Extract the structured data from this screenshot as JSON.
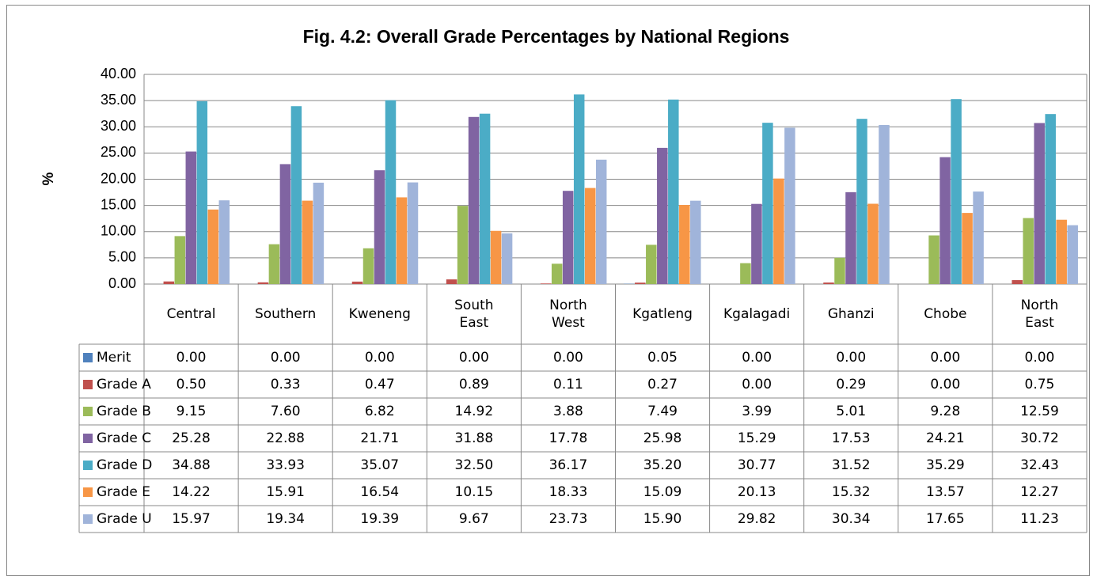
{
  "chart_data": {
    "type": "bar",
    "title": "Fig. 4.2: Overall Grade Percentages by National Regions",
    "y_label": "%",
    "categories": [
      "Central",
      "Southern",
      "Kweneng",
      "South East",
      "North West",
      "Kgatleng",
      "Kgalagadi",
      "Ghanzi",
      "Chobe",
      "North East"
    ],
    "ylim": [
      0,
      40
    ],
    "yticks": [
      {
        "value": 0,
        "label": "0.00"
      },
      {
        "value": 5,
        "label": "5.00"
      },
      {
        "value": 10,
        "label": "10.00"
      },
      {
        "value": 15,
        "label": "15.00"
      },
      {
        "value": 20,
        "label": "20.00"
      },
      {
        "value": 25,
        "label": "25.00"
      },
      {
        "value": 30,
        "label": "30.00"
      },
      {
        "value": 35,
        "label": "35.00"
      },
      {
        "value": 40,
        "label": "40.00"
      }
    ],
    "grid": true,
    "series": [
      {
        "name": "Merit",
        "color": "#4f81bd",
        "values": [
          0,
          0,
          0,
          0,
          0,
          0.05,
          0,
          0,
          0,
          0
        ],
        "value_labels": [
          "0.00",
          "0.00",
          "0.00",
          "0.00",
          "0.00",
          "0.05",
          "0.00",
          "0.00",
          "0.00",
          "0.00"
        ]
      },
      {
        "name": "Grade A",
        "color": "#c0504d",
        "values": [
          0.5,
          0.33,
          0.47,
          0.89,
          0.11,
          0.27,
          0,
          0.29,
          0,
          0.75
        ],
        "value_labels": [
          "0.50",
          "0.33",
          "0.47",
          "0.89",
          "0.11",
          "0.27",
          "0.00",
          "0.29",
          "0.00",
          "0.75"
        ]
      },
      {
        "name": "Grade B",
        "color": "#9bbb59",
        "values": [
          9.15,
          7.6,
          6.82,
          14.92,
          3.88,
          7.49,
          3.99,
          5.01,
          9.28,
          12.59
        ],
        "value_labels": [
          "9.15",
          "7.60",
          "6.82",
          "14.92",
          "3.88",
          "7.49",
          "3.99",
          "5.01",
          "9.28",
          "12.59"
        ]
      },
      {
        "name": "Grade C",
        "color": "#8064a2",
        "values": [
          25.28,
          22.88,
          21.71,
          31.88,
          17.78,
          25.98,
          15.29,
          17.53,
          24.21,
          30.72
        ],
        "value_labels": [
          "25.28",
          "22.88",
          "21.71",
          "31.88",
          "17.78",
          "25.98",
          "15.29",
          "17.53",
          "24.21",
          "30.72"
        ]
      },
      {
        "name": "Grade D",
        "color": "#4bacc6",
        "values": [
          34.88,
          33.93,
          35.07,
          32.5,
          36.17,
          35.2,
          30.77,
          31.52,
          35.29,
          32.43
        ],
        "value_labels": [
          "34.88",
          "33.93",
          "35.07",
          "32.50",
          "36.17",
          "35.20",
          "30.77",
          "31.52",
          "35.29",
          "32.43"
        ]
      },
      {
        "name": "Grade E",
        "color": "#f79646",
        "values": [
          14.22,
          15.91,
          16.54,
          10.15,
          18.33,
          15.09,
          20.13,
          15.32,
          13.57,
          12.27
        ],
        "value_labels": [
          "14.22",
          "15.91",
          "16.54",
          "10.15",
          "18.33",
          "15.09",
          "20.13",
          "15.32",
          "13.57",
          "12.27"
        ]
      },
      {
        "name": "Grade U",
        "color": "#a0b4da",
        "values": [
          15.97,
          19.34,
          19.39,
          9.67,
          23.73,
          15.9,
          29.82,
          30.34,
          17.65,
          11.23
        ],
        "value_labels": [
          "15.97",
          "19.34",
          "19.39",
          "9.67",
          "23.73",
          "15.90",
          "29.82",
          "30.34",
          "17.65",
          "11.23"
        ]
      }
    ]
  }
}
